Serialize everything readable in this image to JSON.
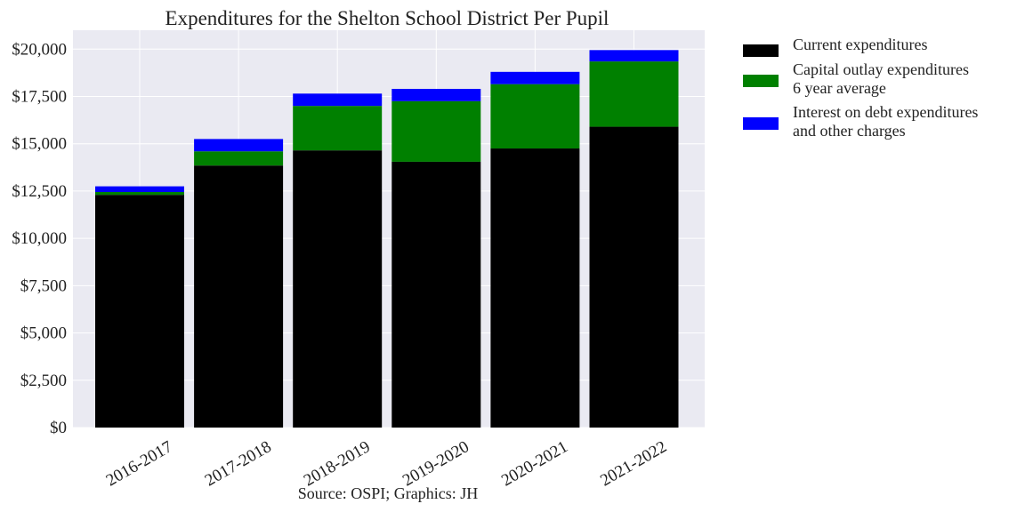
{
  "chart_data": {
    "type": "bar",
    "stacked": true,
    "title": "Expenditures for the Shelton School District Per Pupil",
    "xlabel": "",
    "ylabel": "",
    "source": "Source: OSPI; Graphics: JH",
    "categories": [
      "2016-2017",
      "2017-2018",
      "2018-2019",
      "2019-2020",
      "2020-2021",
      "2021-2022"
    ],
    "series": [
      {
        "name": "Current expenditures",
        "color": "#000000",
        "values": [
          12300,
          13850,
          14650,
          14050,
          14750,
          15900
        ]
      },
      {
        "name": "Capital outlay expenditures 6 year average",
        "color": "#008000",
        "values": [
          150,
          750,
          2350,
          3200,
          3400,
          3450
        ]
      },
      {
        "name": "Interest on debt expenditures and other charges",
        "color": "#0000ff",
        "values": [
          300,
          650,
          650,
          650,
          650,
          600
        ]
      }
    ],
    "legend_lines": [
      [
        "Current expenditures"
      ],
      [
        "Capital outlay expenditures",
        "6 year average"
      ],
      [
        "Interest on debt expenditures",
        "and other charges"
      ]
    ],
    "ylim": [
      0,
      21000
    ],
    "yticks": [
      0,
      2500,
      5000,
      7500,
      10000,
      12500,
      15000,
      17500,
      20000
    ],
    "ytick_labels": [
      "$0",
      "$2,500",
      "$5,000",
      "$7,500",
      "$10,000",
      "$12,500",
      "$15,000",
      "$17,500",
      "$20,000"
    ],
    "grid": true,
    "legend_position": "outside-right-top",
    "plot_background": "#eaeaf2"
  }
}
